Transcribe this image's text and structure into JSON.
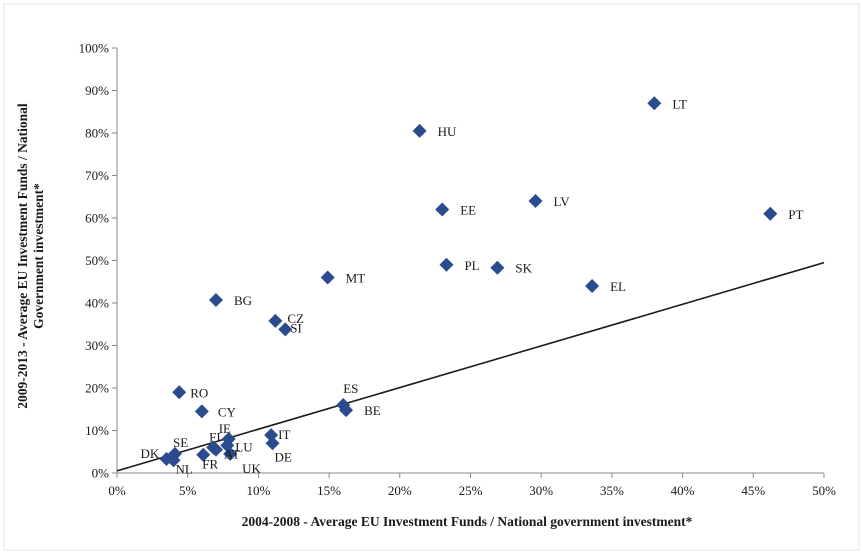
{
  "chart_data": {
    "type": "scatter",
    "title": "",
    "xlabel": "2004-2008 - Average EU Investment Funds / National government investment*",
    "ylabel_line1": "2009-2013 - Average EU Investment Funds / National",
    "ylabel_line2": "Government investment*",
    "xlim": [
      0,
      50
    ],
    "ylim": [
      0,
      100
    ],
    "x_ticks": [
      0,
      5,
      10,
      15,
      20,
      25,
      30,
      35,
      40,
      45,
      50
    ],
    "x_tick_labels": [
      "0%",
      "5%",
      "10%",
      "15%",
      "20%",
      "25%",
      "30%",
      "35%",
      "40%",
      "45%",
      "50%"
    ],
    "y_ticks": [
      0,
      10,
      20,
      30,
      40,
      50,
      60,
      70,
      80,
      90,
      100
    ],
    "y_tick_labels": [
      "0%",
      "10%",
      "20%",
      "30%",
      "40%",
      "50%",
      "60%",
      "70%",
      "80%",
      "90%",
      "100%"
    ],
    "grid": false,
    "marker_color": "#2a4b8d",
    "trendline": {
      "type": "linear",
      "x": [
        0,
        50
      ],
      "y": [
        0.5,
        49.5
      ],
      "color": "#1a1a1a"
    },
    "points": [
      {
        "label": "LT",
        "x": 38.0,
        "y": 87.0
      },
      {
        "label": "HU",
        "x": 21.4,
        "y": 80.5
      },
      {
        "label": "LV",
        "x": 29.6,
        "y": 64.0
      },
      {
        "label": "EE",
        "x": 23.0,
        "y": 62.0
      },
      {
        "label": "PT",
        "x": 46.2,
        "y": 61.0
      },
      {
        "label": "PL",
        "x": 23.3,
        "y": 49.0
      },
      {
        "label": "SK",
        "x": 26.9,
        "y": 48.3
      },
      {
        "label": "MT",
        "x": 14.9,
        "y": 46.0
      },
      {
        "label": "EL",
        "x": 33.6,
        "y": 44.0
      },
      {
        "label": "BG",
        "x": 7.0,
        "y": 40.7
      },
      {
        "label": "CZ",
        "x": 11.2,
        "y": 35.8
      },
      {
        "label": "SI",
        "x": 11.9,
        "y": 33.8
      },
      {
        "label": "RO",
        "x": 4.4,
        "y": 19.0
      },
      {
        "label": "ES",
        "x": 16.0,
        "y": 16.0
      },
      {
        "label": "CY",
        "x": 6.0,
        "y": 14.5
      },
      {
        "label": "BE",
        "x": 16.2,
        "y": 14.8
      },
      {
        "label": "IT",
        "x": 10.9,
        "y": 8.9
      },
      {
        "label": "IE",
        "x": 7.9,
        "y": 8.0
      },
      {
        "label": "LU",
        "x": 7.8,
        "y": 6.5
      },
      {
        "label": "FI",
        "x": 6.8,
        "y": 6.0
      },
      {
        "label": "DE",
        "x": 11.0,
        "y": 7.0
      },
      {
        "label": "SE",
        "x": 4.1,
        "y": 4.5
      },
      {
        "label": "DK",
        "x": 3.5,
        "y": 3.3
      },
      {
        "label": "NL",
        "x": 4.0,
        "y": 3.0
      },
      {
        "label": "FR",
        "x": 6.1,
        "y": 4.3
      },
      {
        "label": "AT",
        "x": 7.0,
        "y": 5.5
      },
      {
        "label": "UK",
        "x": 8.0,
        "y": 4.5
      }
    ]
  }
}
